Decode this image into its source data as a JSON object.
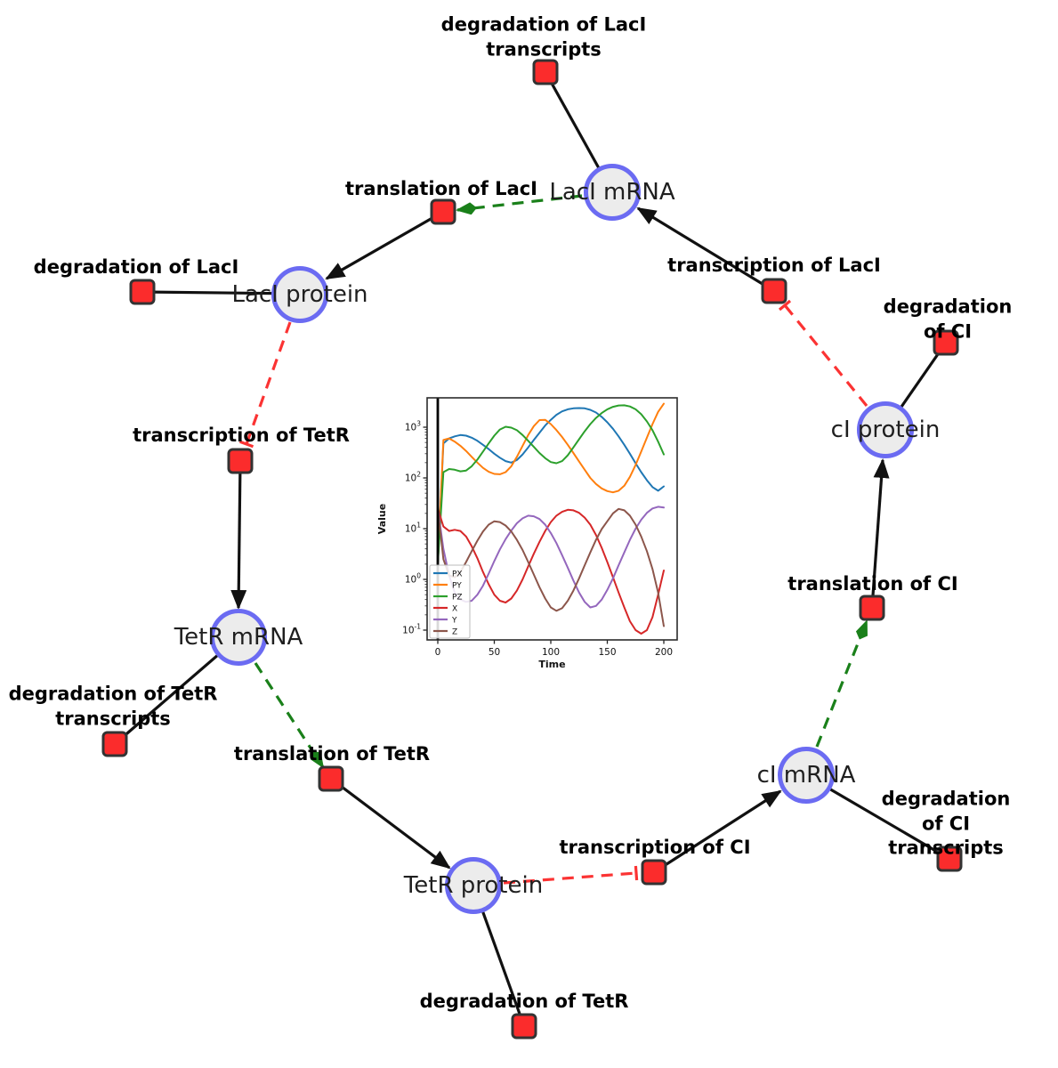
{
  "figure": {
    "description": "Repressilator gene regulatory network diagram with simulation inset",
    "colors": {
      "background": "#ffffff",
      "species_fill": "#ececec",
      "species_border": "#6b6bf2",
      "reaction_fill": "#fb2c2c",
      "reaction_border": "#333333",
      "edge_black": "#111111",
      "edge_activation_green": "#1a801a",
      "edge_inhibition_red": "#fb3333"
    }
  },
  "species": [
    {
      "id": "laci-mrna",
      "label": "LacI mRNA"
    },
    {
      "id": "laci-protein",
      "label": "LacI protein"
    },
    {
      "id": "tetr-mrna",
      "label": "TetR mRNA"
    },
    {
      "id": "tetr-protein",
      "label": "TetR protein"
    },
    {
      "id": "ci-mrna",
      "label": "cI mRNA"
    },
    {
      "id": "ci-protein",
      "label": "cI protein"
    }
  ],
  "reactions": [
    {
      "id": "deg-laci-transcripts",
      "label": "degradation of LacI\ntranscripts"
    },
    {
      "id": "translation-laci",
      "label": "translation of LacI"
    },
    {
      "id": "deg-laci",
      "label": "degradation of LacI"
    },
    {
      "id": "transcription-laci",
      "label": "transcription of LacI"
    },
    {
      "id": "deg-ci",
      "label": "degradation of CI"
    },
    {
      "id": "transcription-tetr",
      "label": "transcription of TetR"
    },
    {
      "id": "deg-tetr-transcripts",
      "label": "degradation of TetR\ntranscripts"
    },
    {
      "id": "translation-tetr",
      "label": "translation of TetR"
    },
    {
      "id": "deg-tetr",
      "label": "degradation of TetR"
    },
    {
      "id": "transcription-ci",
      "label": "transcription of CI"
    },
    {
      "id": "deg-ci-transcripts",
      "label": "degradation of CI\ntranscripts"
    },
    {
      "id": "translation-ci",
      "label": "translation of CI"
    }
  ],
  "edges": [
    {
      "from": "laci-mrna",
      "to": "deg-laci-transcripts",
      "type": "plain"
    },
    {
      "from": "laci-protein",
      "to": "deg-laci",
      "type": "plain"
    },
    {
      "from": "ci-protein",
      "to": "deg-ci",
      "type": "plain"
    },
    {
      "from": "tetr-mrna",
      "to": "deg-tetr-transcripts",
      "type": "plain"
    },
    {
      "from": "tetr-protein",
      "to": "deg-tetr",
      "type": "plain"
    },
    {
      "from": "ci-mrna",
      "to": "deg-ci-transcripts",
      "type": "plain"
    },
    {
      "from": "transcription-laci",
      "to": "laci-mrna",
      "type": "arrow"
    },
    {
      "from": "translation-laci",
      "to": "laci-protein",
      "type": "arrow"
    },
    {
      "from": "transcription-tetr",
      "to": "tetr-mrna",
      "type": "arrow"
    },
    {
      "from": "translation-tetr",
      "to": "tetr-protein",
      "type": "arrow"
    },
    {
      "from": "transcription-ci",
      "to": "ci-mrna",
      "type": "arrow"
    },
    {
      "from": "translation-ci",
      "to": "ci-protein",
      "type": "arrow"
    },
    {
      "from": "laci-mrna",
      "to": "translation-laci",
      "type": "activation-dashed"
    },
    {
      "from": "tetr-mrna",
      "to": "translation-tetr",
      "type": "activation-dashed"
    },
    {
      "from": "ci-mrna",
      "to": "translation-ci",
      "type": "activation-dashed"
    },
    {
      "from": "laci-protein",
      "to": "transcription-tetr",
      "type": "inhibition-dashed"
    },
    {
      "from": "tetr-protein",
      "to": "transcription-ci",
      "type": "inhibition-dashed"
    },
    {
      "from": "ci-protein",
      "to": "transcription-laci",
      "type": "inhibition-dashed"
    }
  ],
  "chart_data": {
    "type": "line",
    "title": "",
    "xlabel": "Time",
    "ylabel": "Value",
    "x_ticks": [
      0,
      50,
      100,
      150,
      200
    ],
    "y_scale": "log",
    "y_tick_exponents": [
      -1,
      0,
      1,
      2,
      3
    ],
    "xlim": [
      0,
      200
    ],
    "ylim": [
      0.1,
      1000
    ],
    "legend_position": "lower left",
    "axvline_x": 0,
    "x": [
      0,
      5,
      10,
      15,
      20,
      25,
      30,
      35,
      40,
      45,
      50,
      55,
      60,
      65,
      70,
      75,
      80,
      85,
      90,
      95,
      100,
      105,
      110,
      115,
      120,
      125,
      130,
      135,
      140,
      145,
      150,
      155,
      160,
      165,
      170,
      175,
      180,
      185,
      190,
      195,
      200
    ],
    "series": [
      {
        "name": "PX",
        "color": "#1f77b4",
        "values": [
          2,
          480,
          600,
          660,
          700,
          680,
          620,
          540,
          450,
          370,
          300,
          250,
          215,
          200,
          225,
          290,
          400,
          560,
          780,
          1080,
          1400,
          1750,
          2050,
          2250,
          2350,
          2380,
          2350,
          2200,
          1950,
          1600,
          1250,
          930,
          660,
          450,
          300,
          195,
          130,
          90,
          66,
          56,
          68
        ]
      },
      {
        "name": "PY",
        "color": "#ff7f0e",
        "values": [
          2,
          560,
          600,
          520,
          430,
          340,
          260,
          200,
          158,
          132,
          120,
          118,
          130,
          170,
          260,
          430,
          700,
          1050,
          1380,
          1400,
          1150,
          880,
          640,
          450,
          310,
          210,
          145,
          100,
          76,
          62,
          55,
          52,
          56,
          70,
          105,
          180,
          330,
          620,
          1150,
          2000,
          2900
        ]
      },
      {
        "name": "PZ",
        "color": "#2ca02c",
        "values": [
          2,
          130,
          150,
          145,
          135,
          140,
          170,
          230,
          330,
          480,
          680,
          900,
          1020,
          980,
          870,
          700,
          540,
          410,
          310,
          245,
          205,
          195,
          215,
          280,
          400,
          580,
          830,
          1150,
          1520,
          1900,
          2250,
          2520,
          2680,
          2700,
          2560,
          2250,
          1800,
          1300,
          870,
          520,
          290
        ]
      },
      {
        "name": "X",
        "color": "#d62728",
        "values": [
          25,
          11,
          9,
          9.5,
          9,
          7,
          4.5,
          2.6,
          1.4,
          0.8,
          0.5,
          0.38,
          0.35,
          0.42,
          0.6,
          1.0,
          1.8,
          3.2,
          5.5,
          9,
          13.5,
          18,
          21.5,
          23.5,
          23,
          20.5,
          16.5,
          12,
          7.5,
          4.2,
          2.2,
          1.1,
          0.55,
          0.28,
          0.15,
          0.1,
          0.085,
          0.1,
          0.18,
          0.5,
          1.5
        ]
      },
      {
        "name": "Y",
        "color": "#9467bd",
        "values": [
          25,
          4,
          1.2,
          0.55,
          0.4,
          0.36,
          0.38,
          0.5,
          0.75,
          1.3,
          2.3,
          3.9,
          6.2,
          9.2,
          12.8,
          16,
          18,
          17.5,
          15.5,
          12,
          8.2,
          5.2,
          3.0,
          1.7,
          0.95,
          0.55,
          0.36,
          0.28,
          0.3,
          0.4,
          0.62,
          1.05,
          1.9,
          3.4,
          6,
          10,
          15,
          20.5,
          25,
          27,
          26
        ]
      },
      {
        "name": "Z",
        "color": "#8c564b",
        "values": [
          25,
          2.5,
          1.2,
          1.1,
          1.4,
          2.2,
          3.6,
          5.8,
          8.8,
          12,
          14,
          13.5,
          11.5,
          8.8,
          6,
          3.8,
          2.2,
          1.25,
          0.7,
          0.42,
          0.28,
          0.24,
          0.27,
          0.38,
          0.6,
          1.05,
          1.9,
          3.4,
          6,
          9.8,
          14,
          20,
          24.5,
          23,
          18,
          12,
          7,
          3.6,
          1.6,
          0.55,
          0.12
        ]
      }
    ]
  }
}
